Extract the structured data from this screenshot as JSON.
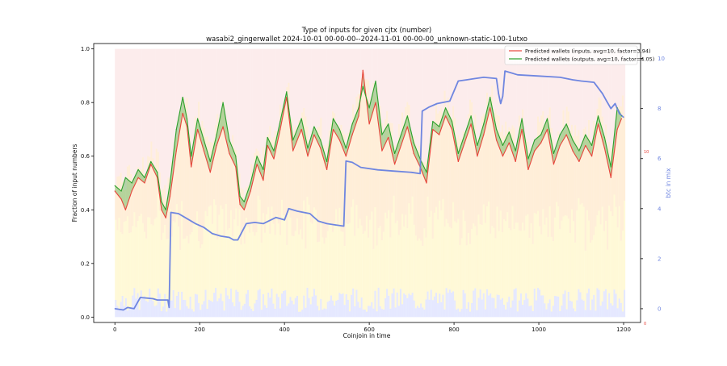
{
  "chart_data": {
    "type": "line",
    "title": "Type of inputs for given cjtx (number)",
    "subtitle": "wasabi2_gingerwallet 2024-10-01 00-00-00--2024-11-01 00-00-00_unknown-static-100-1utxo",
    "xlabel": "Coinjoin in time",
    "ylabel": "Fraction of input numbers",
    "y2label": "btc in mix",
    "xlim": [
      -50,
      1240
    ],
    "ylim": [
      -0.02,
      1.02
    ],
    "y2lim": [
      -0.55,
      10.6
    ],
    "x_ticks": [
      0,
      200,
      400,
      600,
      800,
      1000,
      1200
    ],
    "y_ticks": [
      0.0,
      0.2,
      0.4,
      0.6,
      0.8,
      1.0
    ],
    "y2_ticks": [
      0,
      2,
      4,
      6,
      8,
      10
    ],
    "grid": false,
    "legend_position": "top-right",
    "right_axis_markers": [
      "10",
      "0"
    ],
    "colors": {
      "inputs": "#e8453c",
      "outputs": "#2ca02c",
      "outputs_fill": "#2ca02c",
      "inputs_fill": "#e8453c",
      "btc": "#6f86e0",
      "band_blue": "#cfd6ff",
      "band_yellow": "#fff3b0",
      "band_orange": "#ffd9a8",
      "band_pink": "#f7c9c9"
    },
    "series": [
      {
        "name": "Predicted wallets (inputs, avg=10, factor=3.94)",
        "axis": "left",
        "x": [
          0,
          15,
          25,
          40,
          55,
          70,
          85,
          100,
          110,
          120,
          130,
          145,
          160,
          170,
          180,
          195,
          210,
          225,
          240,
          255,
          270,
          285,
          295,
          305,
          320,
          335,
          350,
          360,
          375,
          390,
          405,
          420,
          440,
          455,
          470,
          485,
          500,
          515,
          530,
          545,
          560,
          575,
          585,
          600,
          615,
          630,
          645,
          660,
          675,
          690,
          705,
          720,
          735,
          750,
          765,
          780,
          795,
          810,
          825,
          840,
          855,
          870,
          885,
          900,
          915,
          930,
          945,
          960,
          975,
          990,
          1005,
          1020,
          1035,
          1050,
          1065,
          1080,
          1095,
          1110,
          1125,
          1140,
          1155,
          1170,
          1185,
          1195
        ],
        "y": [
          0.47,
          0.44,
          0.4,
          0.47,
          0.52,
          0.5,
          0.57,
          0.52,
          0.4,
          0.37,
          0.45,
          0.62,
          0.76,
          0.71,
          0.56,
          0.7,
          0.62,
          0.54,
          0.64,
          0.71,
          0.61,
          0.56,
          0.42,
          0.4,
          0.47,
          0.57,
          0.51,
          0.64,
          0.59,
          0.7,
          0.82,
          0.62,
          0.7,
          0.6,
          0.68,
          0.63,
          0.55,
          0.7,
          0.66,
          0.6,
          0.68,
          0.75,
          0.92,
          0.72,
          0.8,
          0.62,
          0.67,
          0.57,
          0.64,
          0.71,
          0.61,
          0.56,
          0.5,
          0.7,
          0.68,
          0.75,
          0.7,
          0.58,
          0.65,
          0.72,
          0.6,
          0.68,
          0.78,
          0.66,
          0.6,
          0.65,
          0.58,
          0.7,
          0.55,
          0.62,
          0.65,
          0.7,
          0.57,
          0.64,
          0.68,
          0.62,
          0.58,
          0.64,
          0.6,
          0.72,
          0.63,
          0.52,
          0.7,
          0.74
        ]
      },
      {
        "name": "Predicted wallets (outputs, avg=10, factor=4.05)",
        "axis": "left",
        "x": [
          0,
          15,
          25,
          40,
          55,
          70,
          85,
          100,
          110,
          120,
          130,
          145,
          160,
          170,
          180,
          195,
          210,
          225,
          240,
          255,
          270,
          285,
          295,
          305,
          320,
          335,
          350,
          360,
          375,
          390,
          405,
          420,
          440,
          455,
          470,
          485,
          500,
          515,
          530,
          545,
          560,
          575,
          585,
          600,
          615,
          630,
          645,
          660,
          675,
          690,
          705,
          720,
          735,
          750,
          765,
          780,
          795,
          810,
          825,
          840,
          855,
          870,
          885,
          900,
          915,
          930,
          945,
          960,
          975,
          990,
          1005,
          1020,
          1035,
          1050,
          1065,
          1080,
          1095,
          1110,
          1125,
          1140,
          1155,
          1170,
          1185,
          1195
        ],
        "y": [
          0.49,
          0.47,
          0.52,
          0.5,
          0.55,
          0.52,
          0.58,
          0.54,
          0.43,
          0.4,
          0.5,
          0.7,
          0.82,
          0.74,
          0.6,
          0.74,
          0.66,
          0.58,
          0.68,
          0.8,
          0.66,
          0.6,
          0.45,
          0.43,
          0.5,
          0.6,
          0.55,
          0.67,
          0.62,
          0.73,
          0.84,
          0.66,
          0.74,
          0.63,
          0.71,
          0.66,
          0.58,
          0.74,
          0.7,
          0.63,
          0.72,
          0.78,
          0.86,
          0.78,
          0.88,
          0.68,
          0.72,
          0.61,
          0.68,
          0.75,
          0.65,
          0.59,
          0.54,
          0.73,
          0.71,
          0.78,
          0.73,
          0.61,
          0.68,
          0.75,
          0.64,
          0.72,
          0.82,
          0.7,
          0.64,
          0.69,
          0.62,
          0.74,
          0.59,
          0.66,
          0.68,
          0.74,
          0.61,
          0.68,
          0.72,
          0.66,
          0.62,
          0.68,
          0.64,
          0.75,
          0.67,
          0.56,
          0.78,
          0.75
        ]
      },
      {
        "name": "btc in mix",
        "axis": "right",
        "x": [
          0,
          20,
          30,
          45,
          60,
          90,
          100,
          125,
          128,
          132,
          150,
          170,
          190,
          210,
          230,
          250,
          270,
          280,
          290,
          310,
          330,
          350,
          380,
          400,
          410,
          430,
          460,
          480,
          500,
          520,
          540,
          545,
          560,
          580,
          620,
          660,
          700,
          720,
          725,
          740,
          760,
          790,
          810,
          830,
          850,
          870,
          900,
          905,
          910,
          915,
          920,
          950,
          1000,
          1050,
          1080,
          1100,
          1130,
          1150,
          1160,
          1170,
          1180,
          1190,
          1200
        ],
        "y": [
          0.0,
          -0.05,
          0.05,
          0.0,
          0.45,
          0.4,
          0.35,
          0.35,
          0.05,
          3.85,
          3.8,
          3.6,
          3.4,
          3.25,
          3.0,
          2.9,
          2.85,
          2.75,
          2.75,
          3.4,
          3.45,
          3.4,
          3.65,
          3.55,
          4.0,
          3.9,
          3.8,
          3.5,
          3.4,
          3.35,
          3.3,
          5.9,
          5.85,
          5.65,
          5.55,
          5.5,
          5.45,
          5.4,
          7.9,
          8.05,
          8.2,
          8.3,
          9.1,
          9.15,
          9.2,
          9.25,
          9.2,
          8.6,
          8.2,
          8.5,
          9.5,
          9.35,
          9.3,
          9.25,
          9.15,
          9.1,
          9.05,
          8.6,
          8.3,
          8.0,
          8.2,
          7.8,
          7.65
        ]
      }
    ]
  }
}
